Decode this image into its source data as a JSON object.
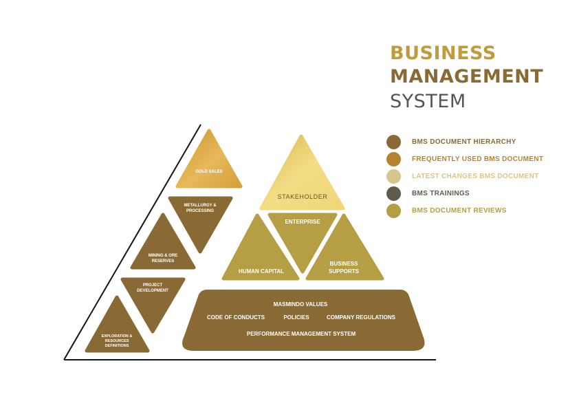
{
  "title": {
    "line1": "BUSINESS",
    "line2": "MANAGEMENT",
    "line3": "SYSTEM"
  },
  "legend": [
    {
      "label": "BMS DOCUMENT HIERARCHY",
      "color": "#8a6a34"
    },
    {
      "label": "FREQUENTLY USED BMS DOCUMENT",
      "color": "#b5832f"
    },
    {
      "label": "LATEST CHANGES BMS DOCUMENT",
      "color": "#d6c58c"
    },
    {
      "label": "BMS TRAININGS",
      "color": "#5f5b4c"
    },
    {
      "label": "BMS DOCUMENT REVIEWS",
      "color": "#b59e44"
    }
  ],
  "value_chain": {
    "gold_sales": "GOLD SALES",
    "metallurgy": [
      "METALLURGY &",
      "PROCESSING"
    ],
    "mining": [
      "MINING & ORE",
      "RESERVES"
    ],
    "project": [
      "PROJECT",
      "DEVELOPMENT"
    ],
    "exploration": [
      "EXPLORATION &",
      "RESOURCES",
      "DEFINITIONS"
    ]
  },
  "pyramid": {
    "stakeholder": "STAKEHOLDER",
    "enterprise": "ENTERPRISE",
    "human_capital": "HUMAN CAPITAL",
    "business_supports": [
      "BUSINESS",
      "SUPPORTS"
    ]
  },
  "foundation": {
    "values": "MASMINDO VALUES",
    "code": "CODE OF CONDUCTS",
    "policies": "POLICIES",
    "regulations": "COMPANY REGULATIONS",
    "performance": "PERFORMANCE MANAGEMENT SYSTEM"
  }
}
